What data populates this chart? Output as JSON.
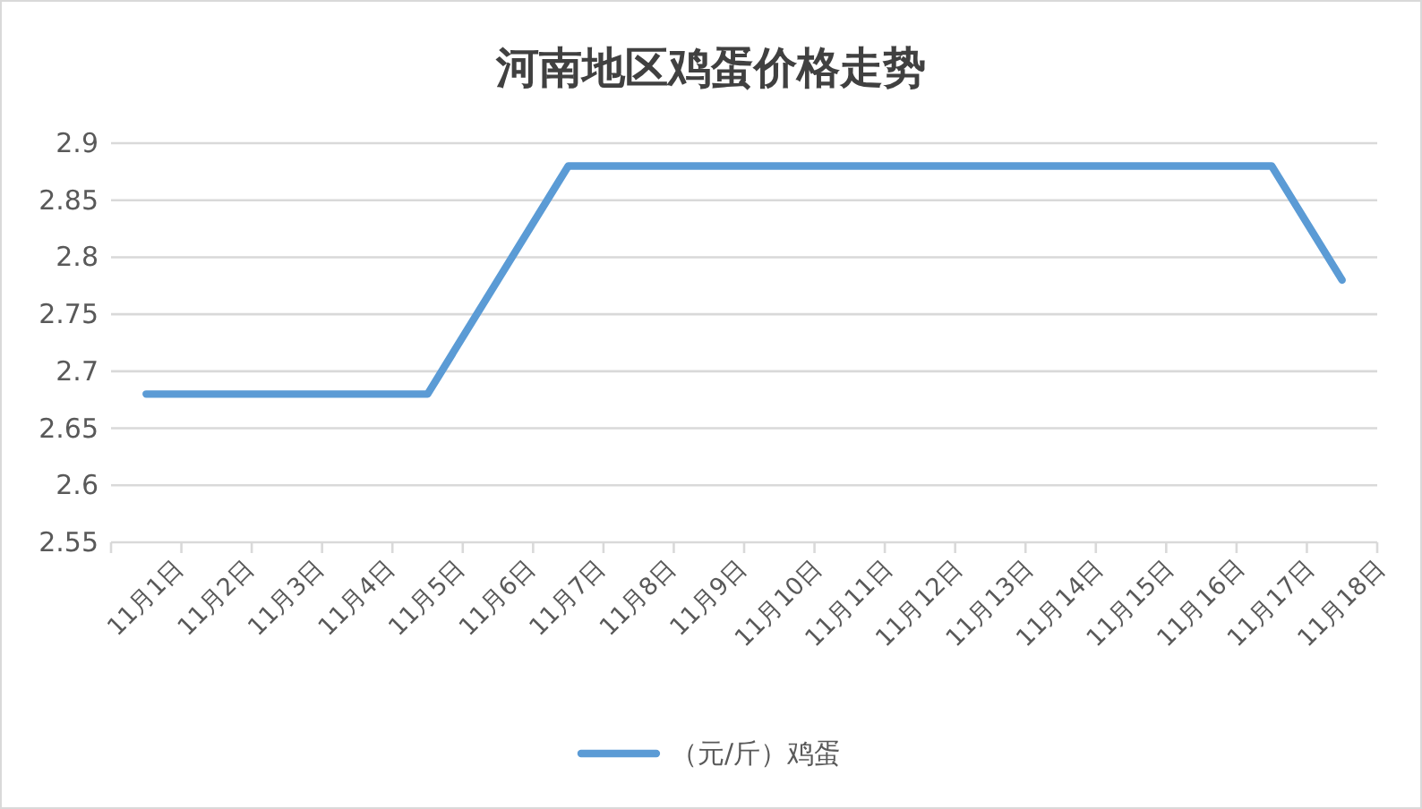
{
  "chart_data": {
    "type": "line",
    "title": "河南地区鸡蛋价格走势",
    "categories": [
      "11月1日",
      "11月2日",
      "11月3日",
      "11月4日",
      "11月5日",
      "11月6日",
      "11月7日",
      "11月8日",
      "11月9日",
      "11月10日",
      "11月11日",
      "11月12日",
      "11月13日",
      "11月14日",
      "11月15日",
      "11月16日",
      "11月17日",
      "11月18日"
    ],
    "series": [
      {
        "name": "（元/斤）鸡蛋",
        "color": "#5b9bd5",
        "values": [
          2.68,
          2.68,
          2.68,
          2.68,
          2.68,
          2.78,
          2.88,
          2.88,
          2.88,
          2.88,
          2.88,
          2.88,
          2.88,
          2.88,
          2.88,
          2.88,
          2.88,
          2.78
        ]
      }
    ],
    "ylim": [
      2.55,
      2.9
    ],
    "yticks": [
      2.55,
      2.6,
      2.65,
      2.7,
      2.75,
      2.8,
      2.85,
      2.9
    ],
    "grid": "y",
    "legend": "bottom"
  }
}
